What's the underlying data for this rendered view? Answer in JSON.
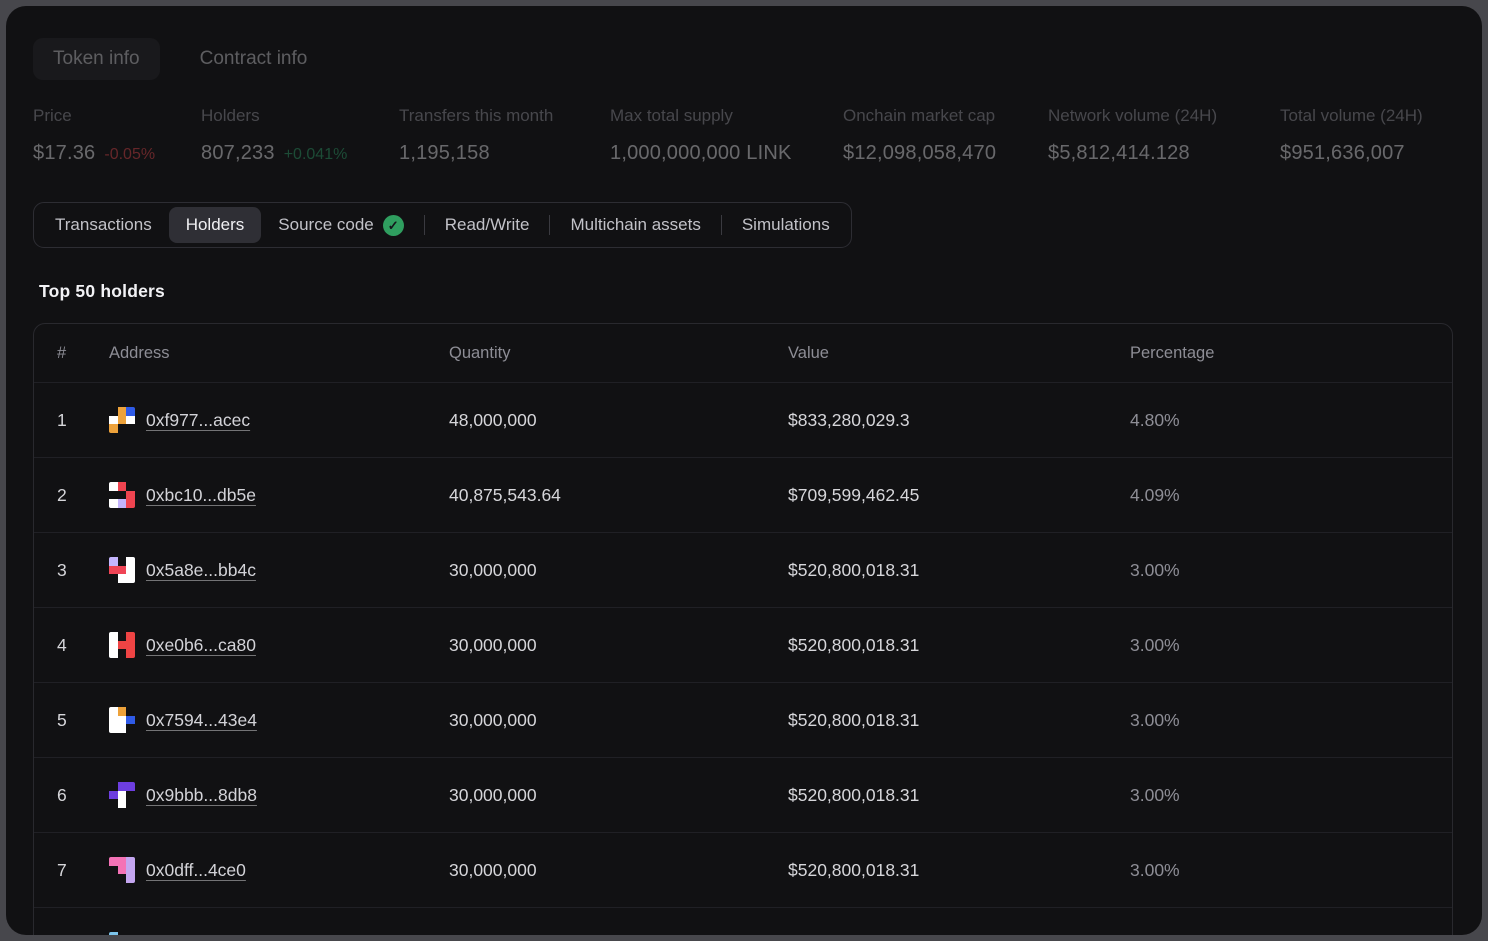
{
  "top_tabs": [
    {
      "label": "Token info",
      "selected": true
    },
    {
      "label": "Contract info",
      "selected": false
    }
  ],
  "stats": [
    {
      "label": "Price",
      "value": "$17.36",
      "delta": "-0.05%",
      "delta_color": "negative"
    },
    {
      "label": "Holders",
      "value": "807,233",
      "delta": "+0.041%",
      "delta_color": "positive"
    },
    {
      "label": "Transfers this month",
      "value": "1,195,158"
    },
    {
      "label": "Max total supply",
      "value": "1,000,000,000 LINK"
    },
    {
      "label": "Onchain market cap",
      "value": "$12,098,058,470"
    },
    {
      "label": "Network volume (24H)",
      "value": "$5,812,414.128"
    },
    {
      "label": "Total volume (24H)",
      "value": "$951,636,007"
    }
  ],
  "tabbar": {
    "items": [
      {
        "label": "Transactions",
        "selected": false
      },
      {
        "label": "Holders",
        "selected": true
      },
      {
        "label": "Source code",
        "selected": false,
        "badge": "verified-check"
      },
      {
        "label": "Read/Write",
        "selected": false,
        "divider_before": true
      },
      {
        "label": "Multichain assets",
        "selected": false,
        "divider_before": true
      },
      {
        "label": "Simulations",
        "selected": false,
        "divider_before": true
      }
    ],
    "verified_badge_glyph": "✓"
  },
  "section_title": "Top 50 holders",
  "table": {
    "columns": [
      "#",
      "Address",
      "Quantity",
      "Value",
      "Percentage"
    ],
    "rows": [
      {
        "rank": "1",
        "address": "0xf977...acec",
        "quantity": "48,000,000",
        "value": "$833,280,029.3",
        "percentage": "4.80%",
        "identicon": [
          "",
          "#eda23b",
          "#2f5be8",
          "#ffffff",
          "#eda23b",
          "#ffffff",
          "#eda23b",
          "",
          ""
        ]
      },
      {
        "rank": "2",
        "address": "0xbc10...db5e",
        "quantity": "40,875,543.64",
        "value": "$709,599,462.45",
        "percentage": "4.09%",
        "identicon": [
          "#ffffff",
          "#ef4450",
          "",
          "",
          "",
          "#ef4450",
          "#ffffff",
          "#c4b5fd",
          "#ef4450"
        ]
      },
      {
        "rank": "3",
        "address": "0x5a8e...bb4c",
        "quantity": "30,000,000",
        "value": "$520,800,018.31",
        "percentage": "3.00%",
        "identicon": [
          "#c4b5fd",
          "",
          "#ffffff",
          "#ef4455",
          "#ef4455",
          "#ffffff",
          "",
          "#ffffff",
          "#ffffff"
        ]
      },
      {
        "rank": "4",
        "address": "0xe0b6...ca80",
        "quantity": "30,000,000",
        "value": "$520,800,018.31",
        "percentage": "3.00%",
        "identicon": [
          "#ffffff",
          "",
          "#ef4444",
          "#ffffff",
          "#ef4444",
          "#ef4444",
          "#ffffff",
          "",
          "#ef4444"
        ]
      },
      {
        "rank": "5",
        "address": "0x7594...43e4",
        "quantity": "30,000,000",
        "value": "$520,800,018.31",
        "percentage": "3.00%",
        "identicon": [
          "#ffffff",
          "#eda23b",
          "",
          "#ffffff",
          "#ffffff",
          "#2f5be8",
          "#ffffff",
          "#ffffff",
          ""
        ]
      },
      {
        "rank": "6",
        "address": "0x9bbb...8db8",
        "quantity": "30,000,000",
        "value": "$520,800,018.31",
        "percentage": "3.00%",
        "identicon": [
          "",
          "#6d3ee0",
          "#6d3ee0",
          "#6d3ee0",
          "#ffffff",
          "",
          "",
          "#ffffff",
          ""
        ]
      },
      {
        "rank": "7",
        "address": "0x0dff...4ce0",
        "quantity": "30,000,000",
        "value": "$520,800,018.31",
        "percentage": "3.00%",
        "identicon": [
          "#f472b6",
          "#f472b6",
          "#c4a6f0",
          "",
          "#f472b6",
          "#c4a6f0",
          "",
          "",
          "#c4a6f0"
        ]
      },
      {
        "rank": "",
        "address": "",
        "quantity": "",
        "value": "",
        "percentage": "",
        "partial": true,
        "identicon": [
          "#7cc4ea",
          "",
          "",
          "",
          "",
          "",
          "",
          "",
          ""
        ]
      }
    ]
  },
  "colors": {
    "negative": "#e5484d",
    "positive": "#2fa46c",
    "verified_badge": "#2f9e5f"
  }
}
